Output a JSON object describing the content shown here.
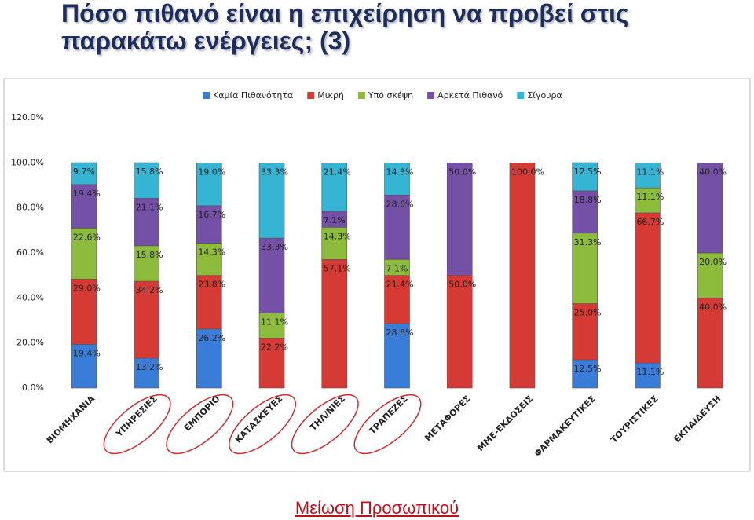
{
  "chart_data": {
    "type": "stacked_bar",
    "title": "Πόσο πιθανό είναι η επιχείρηση να προβεί στις παρακάτω ενέργειες; (3)",
    "footer": "Μείωση Προσωπικού",
    "categories": [
      "ΒΙΟΜΗΧΑΝΙΑ",
      "ΥΠΗΡΕΣΙΕΣ",
      "ΕΜΠΟΡΙΟ",
      "ΚΑΤΑΣΚΕΥΕΣ",
      "ΤΗΛ/ΝΙΕΣ",
      "ΤΡΑΠΕΖΕΣ",
      "ΜΕΤΑΦΟΡΕΣ",
      "ΜΜΕ-ΕΚΔΟΣΕΙΣ",
      "ΦΑΡΜΑΚΕΥΤΙΚΕΣ",
      "ΤΟΥΡΙΣΤΙΚΕΣ",
      "ΕΚΠΑΙΔΕΥΣΗ"
    ],
    "series": [
      {
        "name": "Καμία Πιθανότητα",
        "color": "#3a7dd8",
        "values": [
          19.4,
          13.2,
          26.2,
          null,
          null,
          28.6,
          null,
          null,
          12.5,
          11.1,
          null
        ],
        "value_labels": [
          "19.4%",
          "13.2%",
          "26.2%",
          null,
          null,
          "28.6%",
          null,
          null,
          "12.5%",
          "11.1%",
          null
        ]
      },
      {
        "name": "Μικρή",
        "color": "#d63a34",
        "values": [
          29.0,
          34.2,
          23.8,
          22.2,
          57.1,
          21.4,
          50.0,
          100.0,
          25.0,
          66.7,
          40.0
        ],
        "value_labels": [
          "29.0%",
          "34.2%",
          "23.8%",
          "22.2%",
          "57.1%",
          "21.4%",
          "50.0%",
          "100.0%",
          "25.0%",
          "66.7%",
          "40.0%"
        ]
      },
      {
        "name": "Υπό σκέψη",
        "color": "#8dbb3c",
        "values": [
          22.6,
          15.8,
          14.3,
          11.1,
          14.3,
          7.1,
          null,
          null,
          31.3,
          11.1,
          20.0
        ],
        "value_labels": [
          "22.6%",
          "15.8%",
          "14.3%",
          "11.1%",
          "14.3%",
          "7.1%",
          null,
          null,
          "31.3%",
          "11.1%",
          "20.0%"
        ]
      },
      {
        "name": "Αρκετά Πιθανό",
        "color": "#7451a6",
        "values": [
          19.4,
          21.1,
          16.7,
          33.3,
          7.1,
          28.6,
          50.0,
          null,
          18.8,
          null,
          40.0
        ],
        "value_labels": [
          "19.4%",
          "21.1%",
          "16.7%",
          "33.3%",
          "7.1%",
          "28.6%",
          "50.0%",
          null,
          "18.8%",
          null,
          "40.0%"
        ]
      },
      {
        "name": "Σίγουρα",
        "color": "#35b4d4",
        "values": [
          9.7,
          15.8,
          19.0,
          33.3,
          21.4,
          14.3,
          null,
          null,
          12.5,
          11.1,
          null
        ],
        "value_labels": [
          "9.7%",
          "15.8%",
          "19.0%",
          "33.3%",
          "21.4%",
          "14.3%",
          null,
          null,
          "12.5%",
          "11.1%",
          null
        ]
      }
    ],
    "ylim": [
      0,
      120
    ],
    "yticks": [
      {
        "value": 0,
        "label": "0.0%"
      },
      {
        "value": 20,
        "label": "20.0%"
      },
      {
        "value": 40,
        "label": "40.0%"
      },
      {
        "value": 60,
        "label": "60.0%"
      },
      {
        "value": 80,
        "label": "80.0%"
      },
      {
        "value": 100,
        "label": "100.0%"
      },
      {
        "value": 120,
        "label": "120.0%"
      }
    ],
    "legend": "top"
  }
}
